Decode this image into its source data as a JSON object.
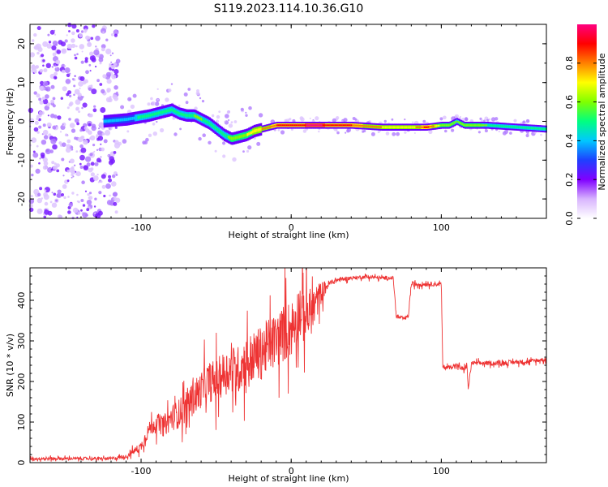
{
  "title": "S119.2023.114.10.36.G10",
  "chart_data": [
    {
      "type": "heatmap",
      "xlabel": "Height of straight line (km)",
      "ylabel": "Frequency (Hz)",
      "xlim": [
        -174,
        170
      ],
      "ylim": [
        -25,
        25
      ],
      "xticks": [
        -100,
        0,
        100
      ],
      "yticks": [
        -20,
        -10,
        0,
        10,
        20
      ],
      "colorbar": {
        "label": "Normalized spectral amplitude",
        "range": [
          0,
          1
        ],
        "ticks": [
          0.0,
          0.2,
          0.4,
          0.6,
          0.8
        ],
        "tick_labels": [
          "0.0",
          "0.2",
          "0.4",
          "0.6",
          "0.8"
        ],
        "colormap": [
          "#ffffff",
          "#d8b4fe",
          "#8000ff",
          "#1e40ff",
          "#00c8ff",
          "#00ff80",
          "#80ff00",
          "#ffff00",
          "#ff8000",
          "#ff0000",
          "#ff0080"
        ]
      },
      "ridge": {
        "x": [
          -125,
          -110,
          -95,
          -85,
          -80,
          -75,
          -70,
          -65,
          -60,
          -55,
          -50,
          -45,
          -40,
          -35,
          -30,
          -25,
          -20,
          -15,
          -10,
          -5,
          0,
          10,
          20,
          40,
          60,
          80,
          90,
          100,
          105,
          110,
          115,
          130,
          150,
          170
        ],
        "y": [
          0.0,
          0.5,
          1.5,
          2.5,
          3.0,
          2.0,
          1.5,
          1.5,
          0.5,
          -0.5,
          -2.0,
          -3.5,
          -4.5,
          -4.0,
          -3.5,
          -2.5,
          -2.0,
          -1.5,
          -1.0,
          -1.0,
          -1.0,
          -1.0,
          -1.0,
          -1.0,
          -1.5,
          -1.5,
          -1.5,
          -1.0,
          -1.0,
          0.0,
          -1.0,
          -1.0,
          -1.5,
          -2.0
        ],
        "amplitude": [
          0.35,
          0.4,
          0.5,
          0.45,
          0.45,
          0.45,
          0.5,
          0.55,
          0.55,
          0.5,
          0.45,
          0.5,
          0.6,
          0.6,
          0.65,
          0.7,
          0.75,
          0.8,
          0.85,
          0.85,
          0.85,
          0.95,
          0.95,
          0.85,
          0.75,
          0.7,
          0.9,
          0.6,
          0.6,
          0.55,
          0.6,
          0.55,
          0.5,
          0.55
        ]
      },
      "noise_region_xlim": [
        -174,
        -115
      ],
      "grid": false
    },
    {
      "type": "line",
      "xlabel": "Height of straight line (km)",
      "ylabel": "SNR (10 * v/v)",
      "xlim": [
        -174,
        170
      ],
      "ylim": [
        0,
        480
      ],
      "xticks": [
        -100,
        0,
        100
      ],
      "yticks": [
        0,
        100,
        200,
        300,
        400
      ],
      "color": "#ee3333",
      "series": [
        {
          "x": [
            -174,
            -160,
            -140,
            -120,
            -110,
            -100,
            -95,
            -90,
            -85,
            -80,
            -75,
            -70,
            -65,
            -60,
            -55,
            -50,
            -45,
            -40,
            -35,
            -30,
            -25,
            -20,
            -15,
            -10,
            -5,
            0,
            5,
            10,
            15,
            20,
            25,
            30,
            40,
            50,
            60,
            68,
            70,
            75,
            78,
            80,
            90,
            100,
            101,
            105,
            110,
            112,
            115,
            117,
            118,
            120,
            130,
            140,
            150,
            160,
            170
          ],
          "y": [
            10,
            10,
            10,
            10,
            15,
            40,
            80,
            100,
            90,
            110,
            120,
            140,
            160,
            180,
            200,
            200,
            220,
            230,
            230,
            250,
            260,
            270,
            290,
            300,
            320,
            330,
            370,
            360,
            380,
            420,
            440,
            450,
            455,
            458,
            455,
            455,
            360,
            355,
            360,
            440,
            440,
            440,
            235,
            235,
            240,
            235,
            230,
            240,
            180,
            245,
            245,
            245,
            248,
            250,
            255
          ],
          "noise": [
            8,
            8,
            8,
            8,
            10,
            25,
            40,
            50,
            60,
            70,
            80,
            90,
            100,
            100,
            110,
            120,
            120,
            130,
            130,
            140,
            140,
            150,
            150,
            150,
            160,
            160,
            150,
            150,
            120,
            60,
            20,
            15,
            10,
            10,
            10,
            10,
            10,
            10,
            10,
            15,
            12,
            12,
            12,
            12,
            12,
            12,
            12,
            12,
            12,
            12,
            12,
            12,
            12,
            12,
            12
          ]
        }
      ],
      "grid": false
    }
  ]
}
